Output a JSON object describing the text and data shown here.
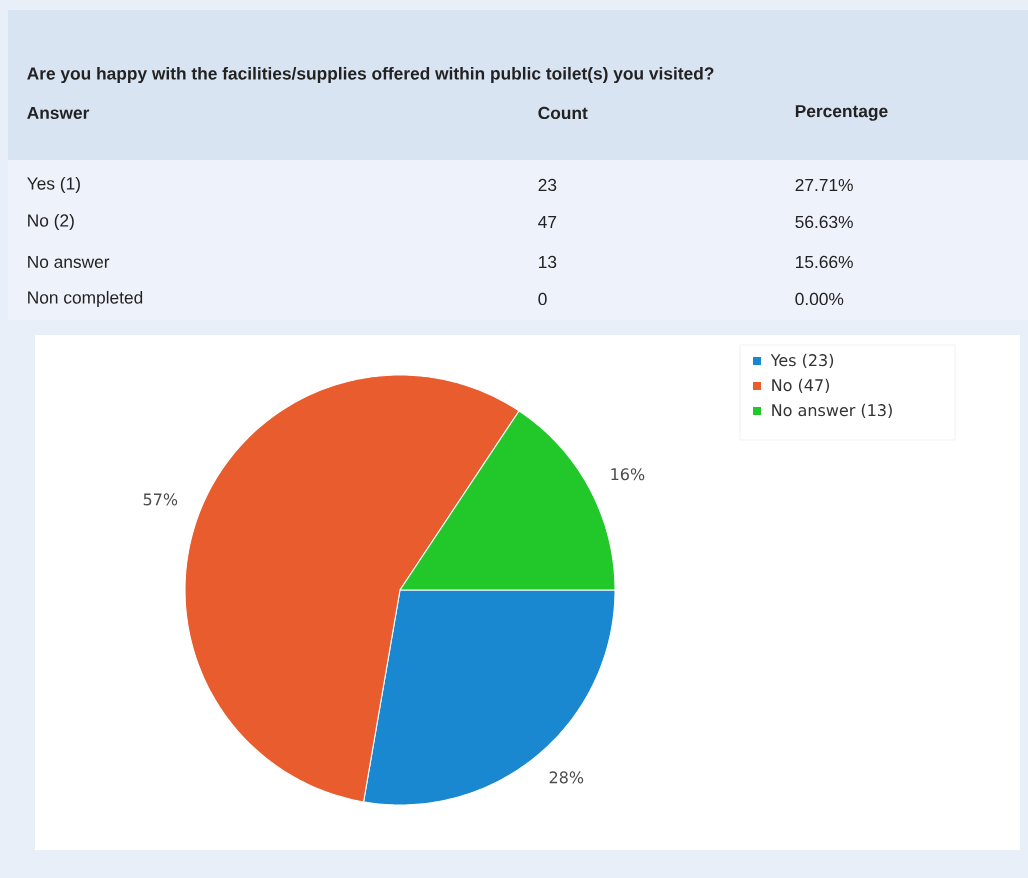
{
  "chart_data": [
    {
      "type": "other",
      "title": "Are you happy with the facilities/supplies offered within public toilet(s) you visited?",
      "annotations": [
        "Answer",
        "Count",
        "Percentage",
        "Yes (1)",
        "23",
        "27.71%",
        "No (2)",
        "47",
        "56.63%",
        "No answer",
        "13",
        "15.66%",
        "Non completed",
        "0",
        "0.00%"
      ]
    },
    {
      "type": "pie",
      "categories": [
        "Yes (23)",
        "No (47)",
        "No answer (13)"
      ],
      "values": [
        27.71,
        56.63,
        15.66
      ],
      "colors": [
        "#1a87d1",
        "#e85c2e",
        "#22c72a"
      ],
      "value_labels": [
        "28%",
        "57%",
        "16%"
      ],
      "legend": "top right"
    }
  ]
}
